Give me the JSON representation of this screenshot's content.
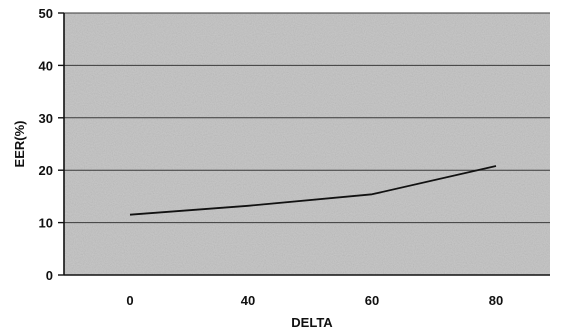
{
  "chart_data": {
    "type": "line",
    "title": "",
    "xlabel": "DELTA",
    "ylabel": "EER(%)",
    "categories": [
      "0",
      "40",
      "60",
      "80"
    ],
    "series": [
      {
        "values": [
          11.5,
          13.2,
          15.4,
          20.8
        ]
      }
    ],
    "ylim": [
      0,
      50
    ],
    "yticks": [
      "0",
      "10",
      "20",
      "30",
      "40",
      "50"
    ],
    "grid": true,
    "legend": "none",
    "colors": {
      "plot_background": "#c8c8c8",
      "gridline": "#3a3a3a",
      "series_line": "#111111"
    }
  }
}
